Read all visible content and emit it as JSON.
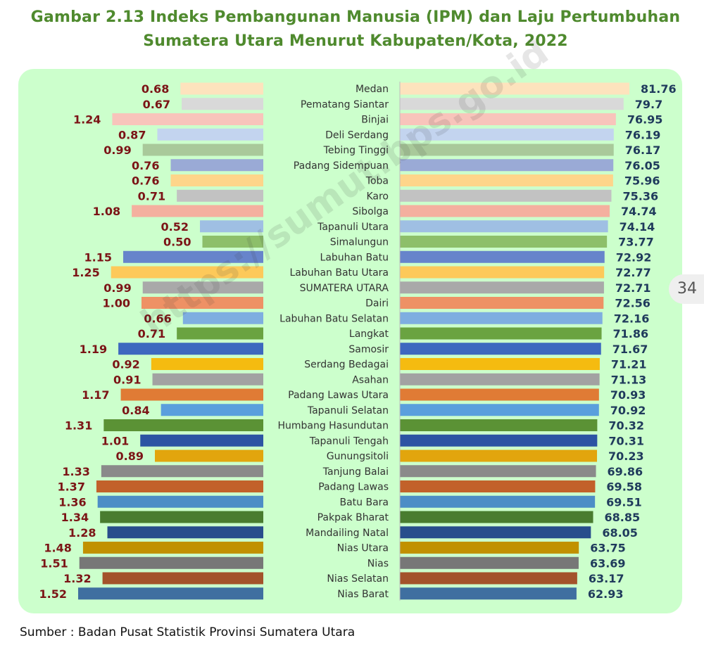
{
  "title_line1": "Gambar 2.13  Indeks Pembangunan Manusia (IPM) dan Laju Pertumbuhan",
  "title_line2": "Sumatera Utara Menurut Kabupaten/Kota, 2022",
  "source": "Sumber : Badan Pusat Statistik Provinsi Sumatera Utara",
  "page_number": "34",
  "watermark": "https://sumut.bps.go.id",
  "colors": {
    "title": "#4f8a2e",
    "panel": "#ccffcc",
    "growth_label": "#7b1416",
    "ipm_label": "#1f3a5c"
  },
  "chart_data": {
    "type": "bar",
    "orientation": "horizontal",
    "categories": [
      "Medan",
      "Pematang Siantar",
      "Binjai",
      "Deli Serdang",
      "Tebing Tinggi",
      "Padang Sidempuan",
      "Toba",
      "Karo",
      "Sibolga",
      "Tapanuli Utara",
      "Simalungun",
      "Labuhan Batu",
      "Labuhan Batu Utara",
      "SUMATERA UTARA",
      "Dairi",
      "Labuhan Batu Selatan",
      "Langkat",
      "Samosir",
      "Serdang Bedagai",
      "Asahan",
      "Padang Lawas Utara",
      "Tapanuli Selatan",
      "Humbang Hasundutan",
      "Tapanuli Tengah",
      "Gunungsitoli",
      "Tanjung Balai",
      "Padang Lawas",
      "Batu Bara",
      "Pakpak Bharat",
      "Mandailing Natal",
      "Nias Utara",
      "Nias",
      "Nias Selatan",
      "Nias Barat"
    ],
    "series": [
      {
        "values": [
          0.68,
          0.67,
          1.24,
          0.87,
          0.99,
          0.76,
          0.76,
          0.71,
          1.08,
          0.52,
          0.5,
          1.15,
          1.25,
          0.99,
          1.0,
          0.66,
          0.71,
          1.19,
          0.92,
          0.91,
          1.17,
          0.84,
          1.31,
          1.01,
          0.89,
          1.33,
          1.37,
          1.36,
          1.34,
          1.28,
          1.48,
          1.51,
          1.32,
          1.52
        ],
        "labels": [
          "0.68",
          "0.67",
          "1.24",
          "0.87",
          "0.99",
          "0.76",
          "0.76",
          "0.71",
          "1.08",
          "0.52",
          "0.50",
          "1.15",
          "1.25",
          "0.99",
          "1.00",
          "0.66",
          "0.71",
          "1.19",
          "0.92",
          "0.91",
          "1.17",
          "0.84",
          "1.31",
          "1.01",
          "0.89",
          "1.33",
          "1.37",
          "1.36",
          "1.34",
          "1.28",
          "1.48",
          "1.51",
          "1.32",
          "1.52"
        ],
        "direction": "leftward"
      },
      {
        "values": [
          81.76,
          79.7,
          76.95,
          76.19,
          76.17,
          76.05,
          75.96,
          75.36,
          74.74,
          74.14,
          73.77,
          72.92,
          72.77,
          72.71,
          72.56,
          72.16,
          71.86,
          71.67,
          71.21,
          71.13,
          70.93,
          70.92,
          70.32,
          70.31,
          70.23,
          69.86,
          69.58,
          69.51,
          68.85,
          68.05,
          63.75,
          63.69,
          63.17,
          62.93
        ],
        "labels": [
          "81.76",
          "79.7",
          "76.95",
          "76.19",
          "76.17",
          "76.05",
          "75.96",
          "75.36",
          "74.74",
          "74.14",
          "73.77",
          "72.92",
          "72.77",
          "72.71",
          "72.56",
          "72.16",
          "71.86",
          "71.67",
          "71.21",
          "71.13",
          "70.93",
          "70.92",
          "70.32",
          "70.31",
          "70.23",
          "69.86",
          "69.58",
          "69.51",
          "68.85",
          "68.05",
          "63.75",
          "63.69",
          "63.17",
          "62.93"
        ],
        "direction": "rightward"
      }
    ],
    "bar_colors": [
      "#fde3bd",
      "#d9d9d9",
      "#f8c4bb",
      "#c3d4ef",
      "#a9c99a",
      "#9aaad6",
      "#fed58a",
      "#c2c2c2",
      "#f4b09f",
      "#9fbfe3",
      "#8dbf6a",
      "#6784cb",
      "#fdc95a",
      "#a9a9a9",
      "#ee9165",
      "#7eaee0",
      "#6aa341",
      "#3d68bf",
      "#f5bb10",
      "#a2a2a2",
      "#e07b35",
      "#5a9fdd",
      "#5b9235",
      "#2c54a3",
      "#e2a50d",
      "#8a8a8a",
      "#c2612a",
      "#4c8dc6",
      "#497c2f",
      "#284d8c",
      "#c19100",
      "#777777",
      "#a3532b",
      "#3f6fa0"
    ]
  }
}
